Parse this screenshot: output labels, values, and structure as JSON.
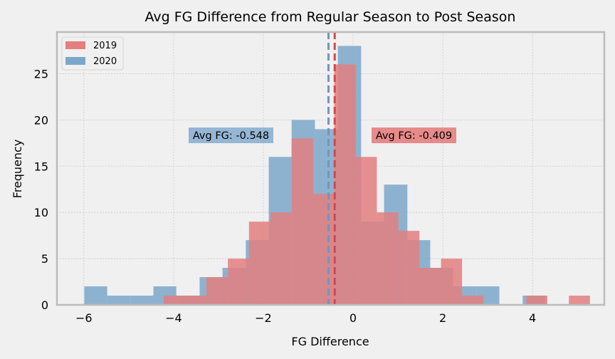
{
  "chart_data": {
    "type": "histogram",
    "title": "Avg FG Difference from Regular Season to Post Season",
    "xlabel": "FG Difference",
    "ylabel": "Frequency",
    "xlim": [
      -6.6,
      5.6
    ],
    "ylim": [
      0,
      29.5
    ],
    "xticks": [
      -6,
      -4,
      -2,
      0,
      2,
      4
    ],
    "xtick_labels": [
      "−6",
      "−4",
      "−2",
      "0",
      "2",
      "4"
    ],
    "yticks": [
      0,
      5,
      10,
      15,
      20,
      25
    ],
    "ytick_labels": [
      "0",
      "5",
      "10",
      "15",
      "20",
      "25"
    ],
    "grid": true,
    "legend_position": "top-left",
    "series": [
      {
        "name": "2020",
        "color": "#7ba7c9",
        "mean": -0.548,
        "mean_color": "#6d97bf",
        "annotation": "Avg FG: -0.548",
        "bins": [
          {
            "x0": -5.99,
            "x1": -5.48,
            "count": 2
          },
          {
            "x0": -5.48,
            "x1": -4.96,
            "count": 1
          },
          {
            "x0": -4.96,
            "x1": -4.45,
            "count": 1
          },
          {
            "x0": -4.45,
            "x1": -3.94,
            "count": 2
          },
          {
            "x0": -3.94,
            "x1": -3.42,
            "count": 1
          },
          {
            "x0": -3.42,
            "x1": -2.91,
            "count": 3
          },
          {
            "x0": -2.91,
            "x1": -2.39,
            "count": 4
          },
          {
            "x0": -2.39,
            "x1": -1.88,
            "count": 7
          },
          {
            "x0": -1.88,
            "x1": -1.37,
            "count": 16
          },
          {
            "x0": -1.37,
            "x1": -0.85,
            "count": 20
          },
          {
            "x0": -0.85,
            "x1": -0.34,
            "count": 19
          },
          {
            "x0": -0.34,
            "x1": 0.18,
            "count": 28
          },
          {
            "x0": 0.18,
            "x1": 0.69,
            "count": 9
          },
          {
            "x0": 0.69,
            "x1": 1.21,
            "count": 13
          },
          {
            "x0": 1.21,
            "x1": 1.72,
            "count": 7
          },
          {
            "x0": 1.72,
            "x1": 2.23,
            "count": 4
          },
          {
            "x0": 2.23,
            "x1": 2.75,
            "count": 2
          },
          {
            "x0": 2.75,
            "x1": 3.26,
            "count": 2
          },
          {
            "x0": 3.26,
            "x1": 3.78,
            "count": 0
          },
          {
            "x0": 3.78,
            "x1": 4.29,
            "count": 1
          }
        ]
      },
      {
        "name": "2019",
        "color": "#e37f7f",
        "mean": -0.409,
        "mean_color": "#d6474a",
        "annotation": "Avg FG: -0.409",
        "bins": [
          {
            "x0": -4.22,
            "x1": -3.74,
            "count": 1
          },
          {
            "x0": -3.74,
            "x1": -3.27,
            "count": 1
          },
          {
            "x0": -3.27,
            "x1": -2.79,
            "count": 3
          },
          {
            "x0": -2.79,
            "x1": -2.32,
            "count": 5
          },
          {
            "x0": -2.32,
            "x1": -1.84,
            "count": 9
          },
          {
            "x0": -1.84,
            "x1": -1.37,
            "count": 10
          },
          {
            "x0": -1.37,
            "x1": -0.89,
            "count": 18
          },
          {
            "x0": -0.89,
            "x1": -0.42,
            "count": 12
          },
          {
            "x0": -0.42,
            "x1": 0.06,
            "count": 26
          },
          {
            "x0": 0.06,
            "x1": 0.53,
            "count": 16
          },
          {
            "x0": 0.53,
            "x1": 1.01,
            "count": 10
          },
          {
            "x0": 1.01,
            "x1": 1.48,
            "count": 8
          },
          {
            "x0": 1.48,
            "x1": 1.96,
            "count": 4
          },
          {
            "x0": 1.96,
            "x1": 2.43,
            "count": 5
          },
          {
            "x0": 2.43,
            "x1": 2.91,
            "count": 1
          },
          {
            "x0": 2.91,
            "x1": 3.38,
            "count": 0
          },
          {
            "x0": 3.38,
            "x1": 3.86,
            "count": 0
          },
          {
            "x0": 3.86,
            "x1": 4.33,
            "count": 1
          },
          {
            "x0": 4.33,
            "x1": 4.81,
            "count": 0
          },
          {
            "x0": 4.81,
            "x1": 5.28,
            "count": 1
          }
        ]
      }
    ]
  }
}
